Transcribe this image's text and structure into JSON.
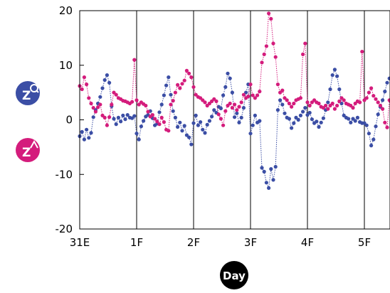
{
  "chart_data": {
    "type": "scatter",
    "title": "",
    "xlabel": "Day",
    "ylabel": "",
    "x_ticks": [
      "31E",
      "1F",
      "2F",
      "3F",
      "4F",
      "5F"
    ],
    "xlim": [
      0,
      5.45
    ],
    "ylim": [
      -20,
      20
    ],
    "y_ticks": [
      -20,
      -10,
      0,
      10,
      20
    ],
    "grid": "vertical lines at day boundaries",
    "legend": "left-side icon badges",
    "series": [
      {
        "label_glyph": "Z_Q",
        "color": "#3b4ea5",
        "style": "dotted line with points",
        "points": [
          [
            0.0,
            -3.0
          ],
          [
            0.04,
            -2.2
          ],
          [
            0.08,
            -3.6
          ],
          [
            0.12,
            -1.8
          ],
          [
            0.16,
            -3.3
          ],
          [
            0.2,
            -2.4
          ],
          [
            0.24,
            0.5
          ],
          [
            0.28,
            1.8
          ],
          [
            0.32,
            3.0
          ],
          [
            0.36,
            4.2
          ],
          [
            0.4,
            5.8
          ],
          [
            0.44,
            7.3
          ],
          [
            0.48,
            8.2
          ],
          [
            0.52,
            6.8
          ],
          [
            0.56,
            2.5
          ],
          [
            0.6,
            0.2
          ],
          [
            0.64,
            -0.8
          ],
          [
            0.68,
            0.4
          ],
          [
            0.72,
            -0.3
          ],
          [
            0.76,
            0.8
          ],
          [
            0.8,
            0.1
          ],
          [
            0.84,
            0.9
          ],
          [
            0.88,
            0.4
          ],
          [
            0.92,
            0.3
          ],
          [
            0.96,
            0.7
          ],
          [
            1.0,
            -2.5
          ],
          [
            1.04,
            -3.6
          ],
          [
            1.08,
            -1.2
          ],
          [
            1.12,
            -0.2
          ],
          [
            1.16,
            0.6
          ],
          [
            1.2,
            0.9
          ],
          [
            1.24,
            1.6
          ],
          [
            1.28,
            0.3
          ],
          [
            1.32,
            -1.0
          ],
          [
            1.36,
            -0.7
          ],
          [
            1.4,
            1.4
          ],
          [
            1.44,
            2.8
          ],
          [
            1.48,
            4.5
          ],
          [
            1.52,
            6.3
          ],
          [
            1.56,
            7.8
          ],
          [
            1.6,
            4.6
          ],
          [
            1.64,
            1.6
          ],
          [
            1.68,
            0.4
          ],
          [
            1.72,
            -1.3
          ],
          [
            1.76,
            -0.5
          ],
          [
            1.8,
            -2.0
          ],
          [
            1.84,
            -1.1
          ],
          [
            1.88,
            -2.8
          ],
          [
            1.92,
            -3.2
          ],
          [
            1.96,
            -4.5
          ],
          [
            2.0,
            -0.6
          ],
          [
            2.04,
            0.8
          ],
          [
            2.08,
            -1.0
          ],
          [
            2.12,
            -0.4
          ],
          [
            2.16,
            -1.8
          ],
          [
            2.2,
            -2.4
          ],
          [
            2.24,
            -0.9
          ],
          [
            2.28,
            -0.2
          ],
          [
            2.32,
            0.6
          ],
          [
            2.36,
            1.8
          ],
          [
            2.4,
            1.3
          ],
          [
            2.44,
            2.4
          ],
          [
            2.48,
            2.1
          ],
          [
            2.52,
            4.5
          ],
          [
            2.56,
            6.0
          ],
          [
            2.6,
            8.5
          ],
          [
            2.64,
            7.6
          ],
          [
            2.68,
            5.0
          ],
          [
            2.72,
            0.5
          ],
          [
            2.76,
            1.2
          ],
          [
            2.8,
            -0.5
          ],
          [
            2.84,
            0.4
          ],
          [
            2.88,
            2.2
          ],
          [
            2.92,
            5.0
          ],
          [
            2.96,
            6.5
          ],
          [
            3.0,
            -2.5
          ],
          [
            3.04,
            -1.0
          ],
          [
            3.08,
            0.8
          ],
          [
            3.12,
            -0.5
          ],
          [
            3.16,
            -0.2
          ],
          [
            3.2,
            -8.8
          ],
          [
            3.24,
            -9.5
          ],
          [
            3.28,
            -11.5
          ],
          [
            3.32,
            -12.5
          ],
          [
            3.36,
            -9.0
          ],
          [
            3.4,
            -11.0
          ],
          [
            3.44,
            -8.6
          ],
          [
            3.48,
            1.8
          ],
          [
            3.52,
            3.6
          ],
          [
            3.56,
            2.8
          ],
          [
            3.6,
            1.2
          ],
          [
            3.64,
            0.4
          ],
          [
            3.68,
            0.2
          ],
          [
            3.72,
            -1.5
          ],
          [
            3.76,
            -0.6
          ],
          [
            3.8,
            0.4
          ],
          [
            3.84,
            0.0
          ],
          [
            3.88,
            0.8
          ],
          [
            3.92,
            1.5
          ],
          [
            3.96,
            2.2
          ],
          [
            4.0,
            0.9
          ],
          [
            4.04,
            1.3
          ],
          [
            4.08,
            0.1
          ],
          [
            4.12,
            -0.6
          ],
          [
            4.16,
            -0.3
          ],
          [
            4.2,
            -1.3
          ],
          [
            4.24,
            -0.5
          ],
          [
            4.28,
            0.3
          ],
          [
            4.32,
            1.8
          ],
          [
            4.36,
            3.2
          ],
          [
            4.4,
            5.6
          ],
          [
            4.44,
            8.2
          ],
          [
            4.48,
            9.2
          ],
          [
            4.52,
            8.0
          ],
          [
            4.56,
            5.6
          ],
          [
            4.6,
            3.0
          ],
          [
            4.64,
            0.8
          ],
          [
            4.68,
            0.4
          ],
          [
            4.72,
            0.2
          ],
          [
            4.76,
            -0.5
          ],
          [
            4.8,
            0.2
          ],
          [
            4.84,
            -0.2
          ],
          [
            4.88,
            0.4
          ],
          [
            4.92,
            -0.4
          ],
          [
            4.96,
            -0.6
          ],
          [
            5.0,
            -0.6
          ],
          [
            5.04,
            -1.0
          ],
          [
            5.08,
            -2.5
          ],
          [
            5.12,
            -4.7
          ],
          [
            5.16,
            -3.6
          ],
          [
            5.2,
            -1.2
          ],
          [
            5.24,
            1.0
          ],
          [
            5.28,
            2.4
          ],
          [
            5.32,
            3.6
          ],
          [
            5.36,
            5.2
          ],
          [
            5.4,
            6.8
          ],
          [
            5.44,
            7.6
          ]
        ]
      },
      {
        "label_glyph": "Z_λ",
        "color": "#d41c7c",
        "style": "dotted line with points",
        "points": [
          [
            0.0,
            6.2
          ],
          [
            0.04,
            5.6
          ],
          [
            0.08,
            7.8
          ],
          [
            0.12,
            6.5
          ],
          [
            0.16,
            4.0
          ],
          [
            0.2,
            3.0
          ],
          [
            0.24,
            2.2
          ],
          [
            0.28,
            1.5
          ],
          [
            0.32,
            2.3
          ],
          [
            0.36,
            2.8
          ],
          [
            0.4,
            0.8
          ],
          [
            0.44,
            0.4
          ],
          [
            0.48,
            -1.0
          ],
          [
            0.52,
            0.5
          ],
          [
            0.56,
            2.8
          ],
          [
            0.6,
            5.0
          ],
          [
            0.64,
            4.6
          ],
          [
            0.68,
            4.0
          ],
          [
            0.72,
            3.8
          ],
          [
            0.76,
            3.5
          ],
          [
            0.8,
            3.4
          ],
          [
            0.84,
            3.2
          ],
          [
            0.88,
            3.0
          ],
          [
            0.92,
            3.3
          ],
          [
            0.96,
            11.0
          ],
          [
            1.0,
            3.6
          ],
          [
            1.04,
            2.8
          ],
          [
            1.08,
            3.2
          ],
          [
            1.12,
            2.9
          ],
          [
            1.16,
            2.6
          ],
          [
            1.2,
            1.5
          ],
          [
            1.24,
            0.6
          ],
          [
            1.28,
            0.9
          ],
          [
            1.32,
            0.2
          ],
          [
            1.36,
            -0.3
          ],
          [
            1.4,
            -0.8
          ],
          [
            1.44,
            0.4
          ],
          [
            1.48,
            -0.4
          ],
          [
            1.52,
            -1.8
          ],
          [
            1.56,
            -2.0
          ],
          [
            1.6,
            2.8
          ],
          [
            1.64,
            3.5
          ],
          [
            1.68,
            5.0
          ],
          [
            1.72,
            6.4
          ],
          [
            1.76,
            5.8
          ],
          [
            1.8,
            6.6
          ],
          [
            1.84,
            7.2
          ],
          [
            1.88,
            9.0
          ],
          [
            1.92,
            8.5
          ],
          [
            1.96,
            7.8
          ],
          [
            2.0,
            6.0
          ],
          [
            2.04,
            4.6
          ],
          [
            2.08,
            4.2
          ],
          [
            2.12,
            4.0
          ],
          [
            2.16,
            3.6
          ],
          [
            2.2,
            3.2
          ],
          [
            2.24,
            2.6
          ],
          [
            2.28,
            3.0
          ],
          [
            2.32,
            3.4
          ],
          [
            2.36,
            3.8
          ],
          [
            2.4,
            3.4
          ],
          [
            2.44,
            1.0
          ],
          [
            2.48,
            0.2
          ],
          [
            2.52,
            -1.0
          ],
          [
            2.56,
            1.6
          ],
          [
            2.6,
            2.6
          ],
          [
            2.64,
            3.0
          ],
          [
            2.68,
            2.2
          ],
          [
            2.72,
            2.8
          ],
          [
            2.76,
            1.8
          ],
          [
            2.8,
            2.4
          ],
          [
            2.84,
            3.2
          ],
          [
            2.88,
            4.6
          ],
          [
            2.92,
            4.0
          ],
          [
            2.96,
            4.3
          ],
          [
            3.0,
            6.5
          ],
          [
            3.04,
            4.5
          ],
          [
            3.08,
            4.0
          ],
          [
            3.12,
            4.5
          ],
          [
            3.16,
            5.2
          ],
          [
            3.2,
            10.5
          ],
          [
            3.24,
            12.0
          ],
          [
            3.28,
            13.5
          ],
          [
            3.32,
            19.5
          ],
          [
            3.36,
            18.5
          ],
          [
            3.4,
            14.0
          ],
          [
            3.44,
            11.5
          ],
          [
            3.48,
            6.5
          ],
          [
            3.52,
            5.0
          ],
          [
            3.56,
            5.4
          ],
          [
            3.6,
            4.0
          ],
          [
            3.64,
            3.6
          ],
          [
            3.68,
            3.0
          ],
          [
            3.72,
            2.4
          ],
          [
            3.76,
            3.0
          ],
          [
            3.8,
            3.6
          ],
          [
            3.84,
            3.8
          ],
          [
            3.88,
            4.0
          ],
          [
            3.92,
            12.0
          ],
          [
            3.96,
            14.0
          ],
          [
            4.0,
            3.2
          ],
          [
            4.04,
            2.6
          ],
          [
            4.08,
            3.2
          ],
          [
            4.12,
            3.6
          ],
          [
            4.16,
            3.2
          ],
          [
            4.2,
            3.0
          ],
          [
            4.24,
            2.4
          ],
          [
            4.28,
            2.2
          ],
          [
            4.32,
            2.6
          ],
          [
            4.36,
            2.0
          ],
          [
            4.4,
            2.6
          ],
          [
            4.44,
            3.0
          ],
          [
            4.48,
            2.0
          ],
          [
            4.52,
            2.6
          ],
          [
            4.56,
            3.4
          ],
          [
            4.6,
            4.0
          ],
          [
            4.64,
            3.6
          ],
          [
            4.68,
            3.0
          ],
          [
            4.72,
            2.8
          ],
          [
            4.76,
            2.6
          ],
          [
            4.8,
            2.2
          ],
          [
            4.84,
            3.0
          ],
          [
            4.88,
            3.4
          ],
          [
            4.92,
            3.2
          ],
          [
            4.96,
            12.5
          ],
          [
            5.0,
            3.6
          ],
          [
            5.04,
            4.0
          ],
          [
            5.08,
            5.0
          ],
          [
            5.12,
            5.8
          ],
          [
            5.16,
            4.4
          ],
          [
            5.2,
            3.8
          ],
          [
            5.24,
            3.2
          ],
          [
            5.28,
            2.6
          ],
          [
            5.32,
            2.0
          ],
          [
            5.36,
            -0.5
          ],
          [
            5.4,
            -1.4
          ],
          [
            5.44,
            3.6
          ]
        ]
      }
    ]
  }
}
